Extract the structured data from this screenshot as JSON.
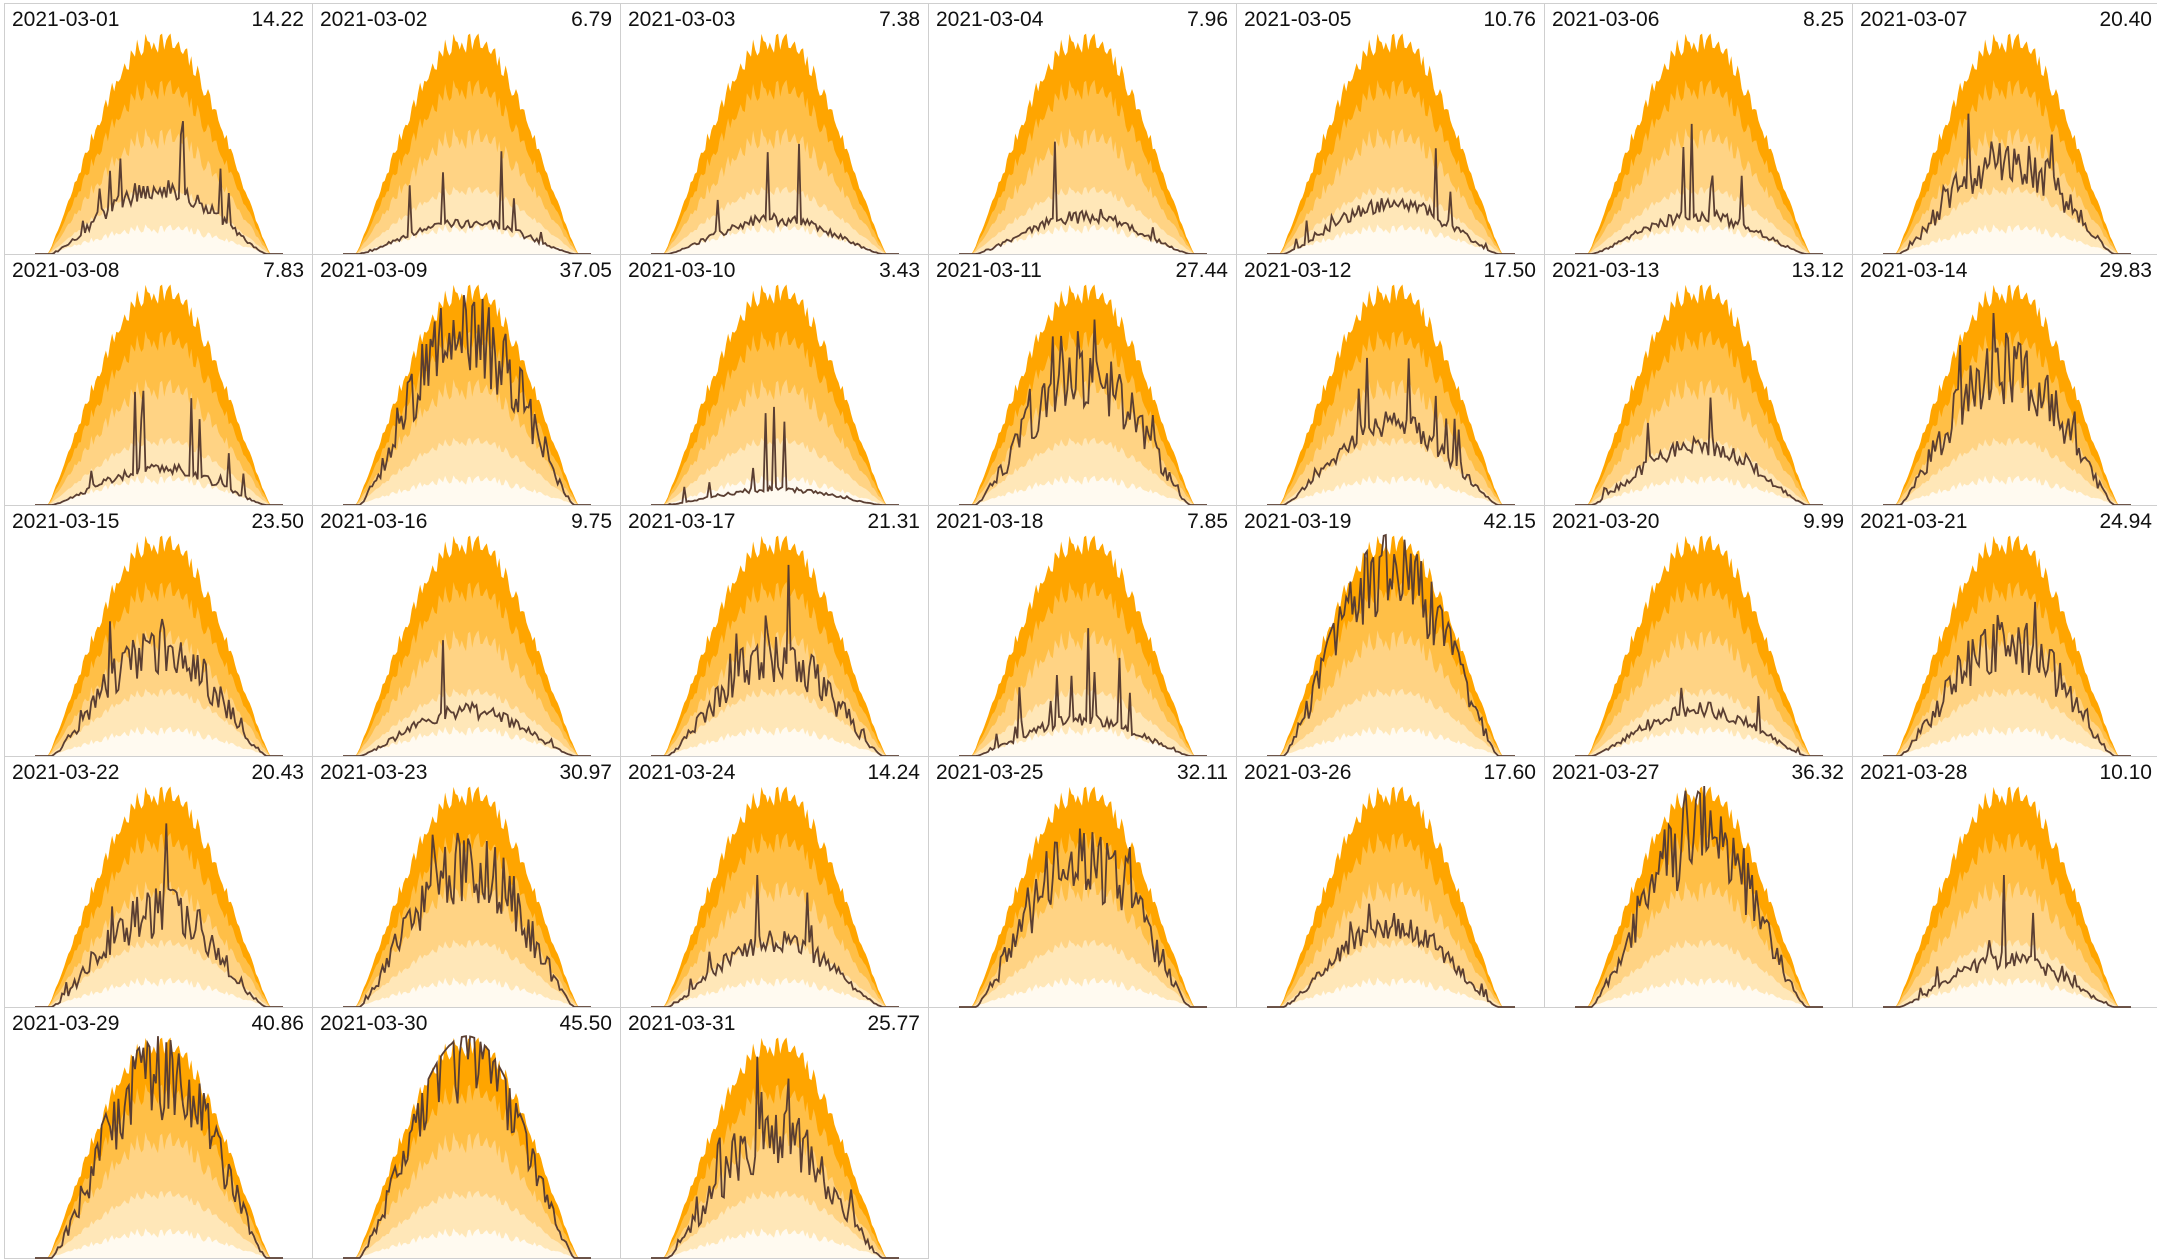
{
  "chart_data": {
    "type": "area",
    "layout": "small-multiples",
    "columns": 7,
    "band_colors": [
      "#fffaf0",
      "#ffe7b8",
      "#ffd384",
      "#ffbf47",
      "#ffa500"
    ],
    "line_color": "#5a3e32",
    "panels": [
      {
        "date": "2021-03-01",
        "total": "14.22"
      },
      {
        "date": "2021-03-02",
        "total": "6.79"
      },
      {
        "date": "2021-03-03",
        "total": "7.38"
      },
      {
        "date": "2021-03-04",
        "total": "7.96"
      },
      {
        "date": "2021-03-05",
        "total": "10.76"
      },
      {
        "date": "2021-03-06",
        "total": "8.25"
      },
      {
        "date": "2021-03-07",
        "total": "20.40"
      },
      {
        "date": "2021-03-08",
        "total": "7.83"
      },
      {
        "date": "2021-03-09",
        "total": "37.05"
      },
      {
        "date": "2021-03-10",
        "total": "3.43"
      },
      {
        "date": "2021-03-11",
        "total": "27.44"
      },
      {
        "date": "2021-03-12",
        "total": "17.50"
      },
      {
        "date": "2021-03-13",
        "total": "13.12"
      },
      {
        "date": "2021-03-14",
        "total": "29.83"
      },
      {
        "date": "2021-03-15",
        "total": "23.50"
      },
      {
        "date": "2021-03-16",
        "total": "9.75"
      },
      {
        "date": "2021-03-17",
        "total": "21.31"
      },
      {
        "date": "2021-03-18",
        "total": "7.85"
      },
      {
        "date": "2021-03-19",
        "total": "42.15"
      },
      {
        "date": "2021-03-20",
        "total": "9.99"
      },
      {
        "date": "2021-03-21",
        "total": "24.94"
      },
      {
        "date": "2021-03-22",
        "total": "20.43"
      },
      {
        "date": "2021-03-23",
        "total": "30.97"
      },
      {
        "date": "2021-03-24",
        "total": "14.24"
      },
      {
        "date": "2021-03-25",
        "total": "32.11"
      },
      {
        "date": "2021-03-26",
        "total": "17.60"
      },
      {
        "date": "2021-03-27",
        "total": "36.32"
      },
      {
        "date": "2021-03-28",
        "total": "10.10"
      },
      {
        "date": "2021-03-29",
        "total": "40.86"
      },
      {
        "date": "2021-03-30",
        "total": "45.50"
      },
      {
        "date": "2021-03-31",
        "total": "25.77"
      }
    ]
  }
}
